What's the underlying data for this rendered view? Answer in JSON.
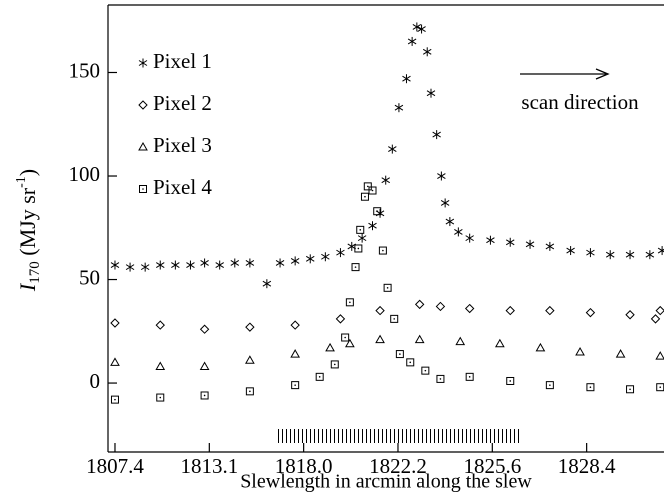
{
  "chart_data": {
    "type": "scatter",
    "xlabel": "Slewlength in arcmin along the slew",
    "ylabel": [
      "I",
      "170",
      " (MJy sr",
      "-1",
      ")"
    ],
    "annotation": "scan direction",
    "xlim": [
      -0.074,
      5.82
    ],
    "ylim": [
      -33.3,
      182.6
    ],
    "xticks": [
      {
        "value": 0,
        "label": "1807.4"
      },
      {
        "value": 1,
        "label": "1813.1"
      },
      {
        "value": 2,
        "label": "1818.0"
      },
      {
        "value": 3,
        "label": "1822.2"
      },
      {
        "value": 4,
        "label": "1825.6"
      },
      {
        "value": 5,
        "label": "1828.4"
      }
    ],
    "yticks": [
      0,
      50,
      100,
      150
    ],
    "legend": "upper left",
    "series": [
      {
        "name": "Pixel 1",
        "marker": "asterisk",
        "color": "#000000",
        "x": [
          0,
          0.16,
          0.32,
          0.48,
          0.64,
          0.8,
          0.95,
          1.11,
          1.27,
          1.43,
          1.61,
          1.75,
          1.91,
          2.07,
          2.23,
          2.39,
          2.51,
          2.62,
          2.73,
          2.81,
          2.87,
          2.94,
          3.01,
          3.09,
          3.15,
          3.2,
          3.25,
          3.31,
          3.35,
          3.41,
          3.46,
          3.5,
          3.55,
          3.64,
          3.76,
          3.98,
          4.19,
          4.4,
          4.61,
          4.83,
          5.04,
          5.25,
          5.46,
          5.67,
          5.8
        ],
        "values": [
          57,
          56,
          56,
          57,
          57,
          57,
          58,
          57,
          58,
          58,
          48,
          58,
          59,
          60,
          61,
          63,
          66,
          70,
          76,
          82,
          98,
          113,
          133,
          147,
          165,
          172,
          171,
          160,
          140,
          120,
          100,
          87,
          78,
          73,
          70,
          69,
          68,
          67,
          66,
          64,
          63,
          62,
          62,
          62,
          64
        ]
      },
      {
        "name": "Pixel 2",
        "marker": "diamond",
        "color": "#000000",
        "x": [
          0,
          0.48,
          0.95,
          1.43,
          1.91,
          2.39,
          2.81,
          3.23,
          3.45,
          3.76,
          4.19,
          4.61,
          5.04,
          5.46,
          5.73,
          5.78
        ],
        "values": [
          29,
          28,
          26,
          27,
          28,
          31,
          35,
          38,
          37,
          36,
          35,
          35,
          34,
          33,
          31,
          35
        ]
      },
      {
        "name": "Pixel 3",
        "marker": "triangle",
        "color": "#000000",
        "x": [
          0,
          0.48,
          0.95,
          1.43,
          1.91,
          2.28,
          2.49,
          2.81,
          3.23,
          3.66,
          4.08,
          4.51,
          4.93,
          5.36,
          5.78
        ],
        "values": [
          10,
          8,
          8,
          11,
          14,
          17,
          19,
          21,
          21,
          20,
          19,
          17,
          15,
          14,
          13
        ]
      },
      {
        "name": "Pixel 4",
        "marker": "square",
        "color": "#000000",
        "x": [
          0,
          0.48,
          0.95,
          1.43,
          1.91,
          2.17,
          2.33,
          2.44,
          2.49,
          2.55,
          2.58,
          2.6,
          2.65,
          2.68,
          2.73,
          2.78,
          2.84,
          2.89,
          2.96,
          3.02,
          3.13,
          3.29,
          3.45,
          3.76,
          4.19,
          4.61,
          5.04,
          5.46,
          5.78
        ],
        "values": [
          -8,
          -7,
          -6,
          -4,
          -1,
          3,
          9,
          22,
          39,
          56,
          65,
          74,
          90,
          95,
          93,
          83,
          64,
          46,
          31,
          14,
          10,
          6,
          2,
          3,
          1,
          -1,
          -2,
          -3,
          -2
        ]
      }
    ]
  }
}
